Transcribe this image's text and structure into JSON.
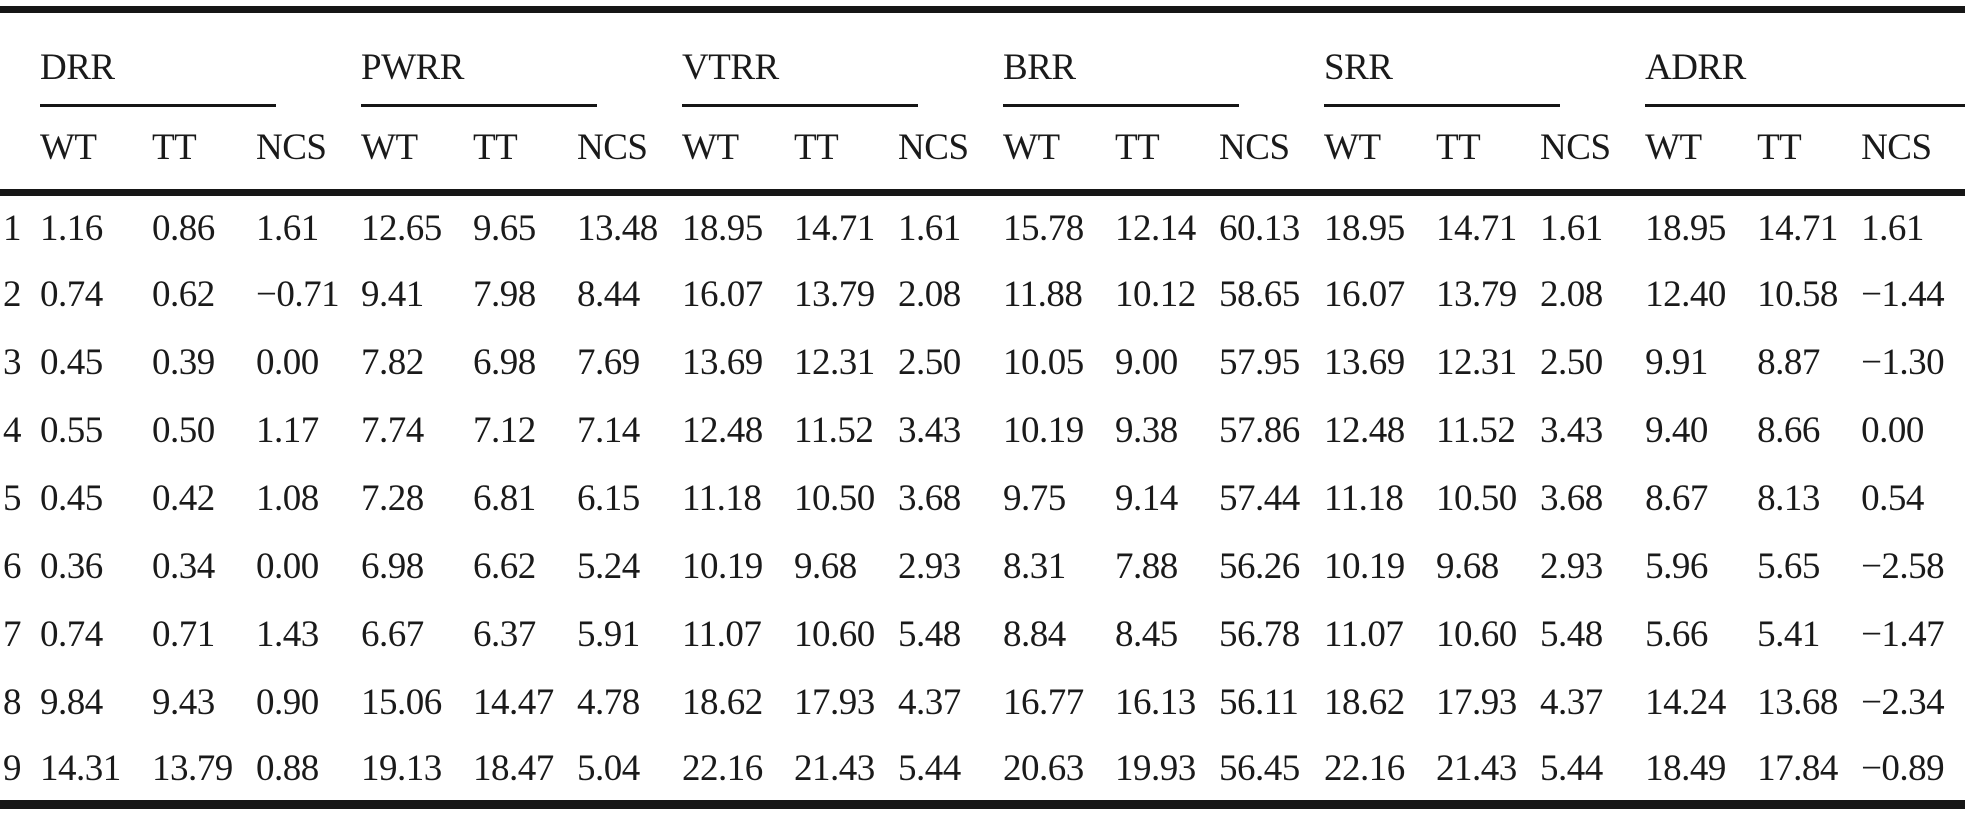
{
  "colors": {
    "text": "#1a1a1a",
    "rule": "#161616",
    "background": "#ffffff"
  },
  "table": {
    "corner_label": "",
    "groups": [
      {
        "label": "DRR",
        "subcolumns": [
          "WT",
          "TT",
          "NCS"
        ]
      },
      {
        "label": "PWRR",
        "subcolumns": [
          "WT",
          "TT",
          "NCS"
        ]
      },
      {
        "label": "VTRR",
        "subcolumns": [
          "WT",
          "TT",
          "NCS"
        ]
      },
      {
        "label": "BRR",
        "subcolumns": [
          "WT",
          "TT",
          "NCS"
        ]
      },
      {
        "label": "SRR",
        "subcolumns": [
          "WT",
          "TT",
          "NCS"
        ]
      },
      {
        "label": "ADRR",
        "subcolumns": [
          "WT",
          "TT",
          "NCS"
        ]
      }
    ],
    "rows": [
      {
        "id": "1",
        "values": [
          "1.16",
          "0.86",
          "1.61",
          "12.65",
          "9.65",
          "13.48",
          "18.95",
          "14.71",
          "1.61",
          "15.78",
          "12.14",
          "60.13",
          "18.95",
          "14.71",
          "1.61",
          "18.95",
          "14.71",
          "1.61"
        ]
      },
      {
        "id": "2",
        "values": [
          "0.74",
          "0.62",
          "−0.71",
          "9.41",
          "7.98",
          "8.44",
          "16.07",
          "13.79",
          "2.08",
          "11.88",
          "10.12",
          "58.65",
          "16.07",
          "13.79",
          "2.08",
          "12.40",
          "10.58",
          "−1.44"
        ]
      },
      {
        "id": "3",
        "values": [
          "0.45",
          "0.39",
          "0.00",
          "7.82",
          "6.98",
          "7.69",
          "13.69",
          "12.31",
          "2.50",
          "10.05",
          "9.00",
          "57.95",
          "13.69",
          "12.31",
          "2.50",
          "9.91",
          "8.87",
          "−1.30"
        ]
      },
      {
        "id": "4",
        "values": [
          "0.55",
          "0.50",
          "1.17",
          "7.74",
          "7.12",
          "7.14",
          "12.48",
          "11.52",
          "3.43",
          "10.19",
          "9.38",
          "57.86",
          "12.48",
          "11.52",
          "3.43",
          "9.40",
          "8.66",
          "0.00"
        ]
      },
      {
        "id": "5",
        "values": [
          "0.45",
          "0.42",
          "1.08",
          "7.28",
          "6.81",
          "6.15",
          "11.18",
          "10.50",
          "3.68",
          "9.75",
          "9.14",
          "57.44",
          "11.18",
          "10.50",
          "3.68",
          "8.67",
          "8.13",
          "0.54"
        ]
      },
      {
        "id": "6",
        "values": [
          "0.36",
          "0.34",
          "0.00",
          "6.98",
          "6.62",
          "5.24",
          "10.19",
          "9.68",
          "2.93",
          "8.31",
          "7.88",
          "56.26",
          "10.19",
          "9.68",
          "2.93",
          "5.96",
          "5.65",
          "−2.58"
        ]
      },
      {
        "id": "7",
        "values": [
          "0.74",
          "0.71",
          "1.43",
          "6.67",
          "6.37",
          "5.91",
          "11.07",
          "10.60",
          "5.48",
          "8.84",
          "8.45",
          "56.78",
          "11.07",
          "10.60",
          "5.48",
          "5.66",
          "5.41",
          "−1.47"
        ]
      },
      {
        "id": "8",
        "values": [
          "9.84",
          "9.43",
          "0.90",
          "15.06",
          "14.47",
          "4.78",
          "18.62",
          "17.93",
          "4.37",
          "16.77",
          "16.13",
          "56.11",
          "18.62",
          "17.93",
          "4.37",
          "14.24",
          "13.68",
          "−2.34"
        ]
      },
      {
        "id": "9",
        "values": [
          "14.31",
          "13.79",
          "0.88",
          "19.13",
          "18.47",
          "5.04",
          "22.16",
          "21.43",
          "5.44",
          "20.63",
          "19.93",
          "56.45",
          "22.16",
          "21.43",
          "5.44",
          "18.49",
          "17.84",
          "−0.89"
        ]
      }
    ]
  }
}
